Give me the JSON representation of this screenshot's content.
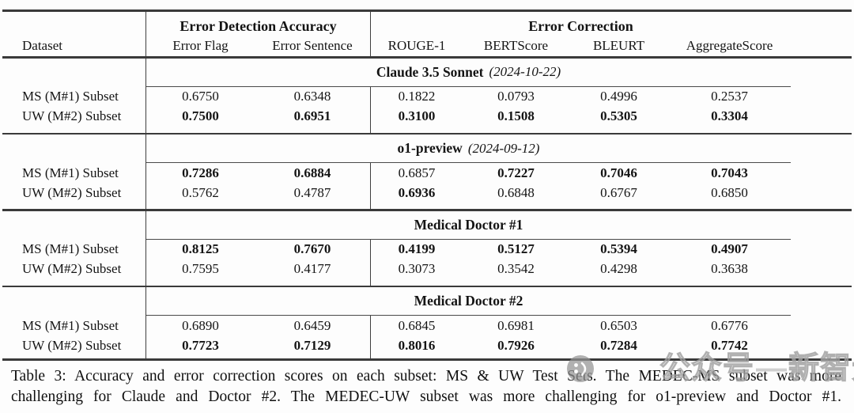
{
  "colors": {
    "text": "#141414",
    "rule": "#3a3a3a",
    "watermark_gray": "#a8a8a8",
    "background": "#fdfdfd"
  },
  "table": {
    "header": {
      "dataset_label": "Dataset",
      "group1": "Error Detection Accuracy",
      "group2": "Error Correction",
      "columns": [
        "Error Flag",
        "Error Sentence",
        "ROUGE-1",
        "BERTScore",
        "BLEURT",
        "AggregateScore"
      ]
    },
    "groups": [
      {
        "name": "Claude 3.5 Sonnet",
        "date": "(2024-10-22)",
        "rows": [
          {
            "label": "MS (M#1) Subset",
            "values": [
              "0.6750",
              "0.6348",
              "0.1822",
              "0.0793",
              "0.4996",
              "0.2537"
            ],
            "bold": [
              false,
              false,
              false,
              false,
              false,
              false
            ]
          },
          {
            "label": "UW (M#2) Subset",
            "values": [
              "0.7500",
              "0.6951",
              "0.3100",
              "0.1508",
              "0.5305",
              "0.3304"
            ],
            "bold": [
              true,
              true,
              true,
              true,
              true,
              true
            ]
          }
        ]
      },
      {
        "name": "o1-preview",
        "date": "(2024-09-12)",
        "rows": [
          {
            "label": "MS (M#1) Subset",
            "values": [
              "0.7286",
              "0.6884",
              "0.6857",
              "0.7227",
              "0.7046",
              "0.7043"
            ],
            "bold": [
              true,
              true,
              false,
              true,
              true,
              true
            ]
          },
          {
            "label": "UW (M#2) Subset",
            "values": [
              "0.5762",
              "0.4787",
              "0.6936",
              "0.6848",
              "0.6767",
              "0.6850"
            ],
            "bold": [
              false,
              false,
              true,
              false,
              false,
              false
            ]
          }
        ]
      },
      {
        "name": "Medical Doctor #1",
        "date": "",
        "rows": [
          {
            "label": "MS (M#1) Subset",
            "values": [
              "0.8125",
              "0.7670",
              "0.4199",
              "0.5127",
              "0.5394",
              "0.4907"
            ],
            "bold": [
              true,
              true,
              true,
              true,
              true,
              true
            ]
          },
          {
            "label": "UW (M#2) Subset",
            "values": [
              "0.7595",
              "0.4177",
              "0.3073",
              "0.3542",
              "0.4298",
              "0.3638"
            ],
            "bold": [
              false,
              false,
              false,
              false,
              false,
              false
            ]
          }
        ]
      },
      {
        "name": "Medical Doctor #2",
        "date": "",
        "rows": [
          {
            "label": "MS (M#1) Subset",
            "values": [
              "0.6890",
              "0.6459",
              "0.6845",
              "0.6981",
              "0.6503",
              "0.6776"
            ],
            "bold": [
              false,
              false,
              false,
              false,
              false,
              false
            ]
          },
          {
            "label": "UW (M#2) Subset",
            "values": [
              "0.7723",
              "0.7129",
              "0.8016",
              "0.7926",
              "0.7284",
              "0.7742"
            ],
            "bold": [
              true,
              true,
              true,
              true,
              true,
              true
            ]
          }
        ]
      }
    ]
  },
  "caption": {
    "line1": "Table 3: Accuracy and error correction scores on each subset: MS & UW Test Sets. The MEDEC-MS subset was more",
    "line2": "challenging for Claude and Doctor #2. The MEDEC-UW subset was more challenging for o1-preview and Doctor #1."
  },
  "watermark": {
    "label1": "公众号",
    "dash": "—",
    "label2": "新智元"
  }
}
